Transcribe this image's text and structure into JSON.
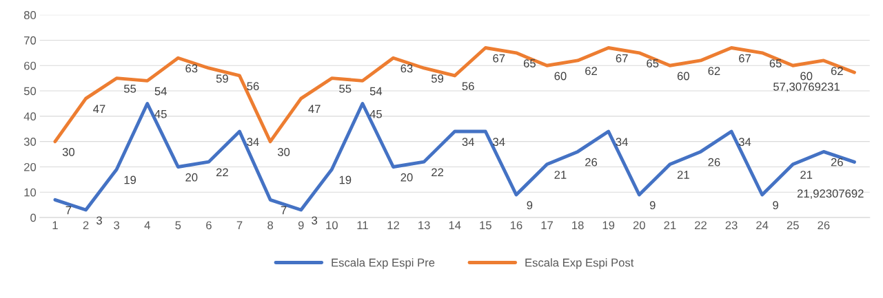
{
  "chart_data": {
    "type": "line",
    "categories": [
      "1",
      "2",
      "3",
      "4",
      "5",
      "6",
      "7",
      "8",
      "9",
      "10",
      "11",
      "12",
      "13",
      "14",
      "15",
      "16",
      "17",
      "18",
      "19",
      "20",
      "21",
      "22",
      "23",
      "24",
      "25",
      "26",
      null
    ],
    "series": [
      {
        "name": "Escala Exp Espi Pre",
        "color": "#4472c4",
        "values": [
          7,
          3,
          19,
          45,
          20,
          22,
          34,
          7,
          3,
          19,
          45,
          20,
          22,
          34,
          34,
          9,
          21,
          26,
          34,
          9,
          21,
          26,
          34,
          9,
          21,
          26,
          21.92307692
        ],
        "value_labels": [
          "7",
          "3",
          "19",
          "45",
          "20",
          "22",
          "34",
          "7",
          "3",
          "19",
          "45",
          "20",
          "22",
          "34",
          "34",
          "9",
          "21",
          "26",
          "34",
          "9",
          "21",
          "26",
          "34",
          "9",
          "21",
          "26",
          "21,92307692"
        ]
      },
      {
        "name": "Escala Exp Espi Post",
        "color": "#ed7d31",
        "values": [
          30,
          47,
          55,
          54,
          63,
          59,
          56,
          30,
          47,
          55,
          54,
          63,
          59,
          56,
          67,
          65,
          60,
          62,
          67,
          65,
          60,
          62,
          67,
          65,
          60,
          62,
          57.30769231
        ],
        "value_labels": [
          "30",
          "47",
          "55",
          "54",
          "63",
          "59",
          "56",
          "30",
          "47",
          "55",
          "54",
          "63",
          "59",
          "56",
          "67",
          "65",
          "60",
          "62",
          "67",
          "65",
          "60",
          "62",
          "67",
          "65",
          "60",
          "62",
          "57,30769231"
        ]
      }
    ],
    "ylim": [
      0,
      80
    ],
    "yticks": [
      0,
      10,
      20,
      30,
      40,
      50,
      60,
      70,
      80
    ],
    "grid": "y",
    "legend": "bottom",
    "marker": "none",
    "line_style": "solid"
  }
}
